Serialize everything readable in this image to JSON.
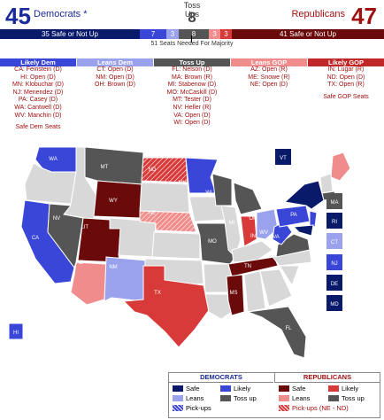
{
  "header": {
    "dem_count": "45",
    "dem_label": "Democrats *",
    "rep_count": "47",
    "rep_label": "Republicans",
    "tossup_label": "Toss Ups",
    "tossup_count": "8"
  },
  "bar": {
    "dem_safe": "35 Safe or Not Up",
    "dem_likely": "7",
    "dem_leans": "3",
    "tossup": "8",
    "rep_leans": "3",
    "rep_likely": "3",
    "rep_safe": "41 Safe or Not Up",
    "majority": "51 Seats Needed For Majority"
  },
  "columns": [
    {
      "title": "Likely Dem",
      "items": [
        "CA: Feinstein (D)",
        "HI: Open (D)",
        "MN: Klobuchar (D)",
        "NJ: Menendez (D)",
        "PA: Casey (D)",
        "WA: Cantwell (D)",
        "WV: Manchin (D)"
      ],
      "footer": "Safe Dem Seats"
    },
    {
      "title": "Leans Dem",
      "items": [
        "CT: Open (D)",
        "NM: Open (D)",
        "OH: Brown (D)"
      ],
      "footer": ""
    },
    {
      "title": "Toss Up",
      "items": [
        "FL: Nelson (D)",
        "MA: Brown (R)",
        "MI: Stabenow (D)",
        "MO: McCaskill (D)",
        "MT: Tester (D)",
        "NV: Heller (R)",
        "VA: Open (D)",
        "WI: Open (D)"
      ],
      "footer": ""
    },
    {
      "title": "Leans GOP",
      "items": [
        "AZ: Open (R)",
        "ME: Snowe (R)",
        "NE: Open (D)"
      ],
      "footer": ""
    },
    {
      "title": "Likely GOP",
      "items": [
        "IN: Lugar (R)",
        "ND: Open (D)",
        "TX: Open (R)"
      ],
      "footer": "Safe GOP Seats"
    }
  ],
  "map_labels": {
    "WA": "WA",
    "MT": "MT",
    "ND": "ND",
    "MN": "MN",
    "NV": "NV",
    "WY": "WY",
    "NE": "NE",
    "UT": "UT",
    "CA": "CA",
    "AZ": "AZ",
    "NM": "NM",
    "TX": "TX",
    "MO": "MO",
    "WI": "WI",
    "MI": "MI",
    "IN": "IN",
    "OH": "OH",
    "WV": "WV",
    "PA": "PA",
    "VA": "VA",
    "TN": "TN",
    "MS": "MS",
    "FL": "FL",
    "HI": "HI",
    "VT": "VT",
    "MA": "MA",
    "RI": "RI",
    "CT": "CT",
    "NJ": "NJ",
    "DE": "DE",
    "MD": "MD"
  },
  "legend": {
    "dem_title": "DEMOCRATS",
    "rep_title": "REPUBLICANS",
    "safe": "Safe",
    "likely": "Likely",
    "leans": "Leans",
    "tossup": "Toss up",
    "pickups": "Pick-ups",
    "rep_pickups": "Pick-ups (NE - ND)"
  },
  "colors": {
    "dem_safe": "#0a1a6a",
    "dem_likely": "#3a46d8",
    "dem_leans": "#9aa2ee",
    "tossup": "#555555",
    "rep_leans": "#f08c8c",
    "rep_likely": "#d83a3a",
    "rep_safe": "#6a0a0a",
    "not_up": "#d8d8d8"
  }
}
